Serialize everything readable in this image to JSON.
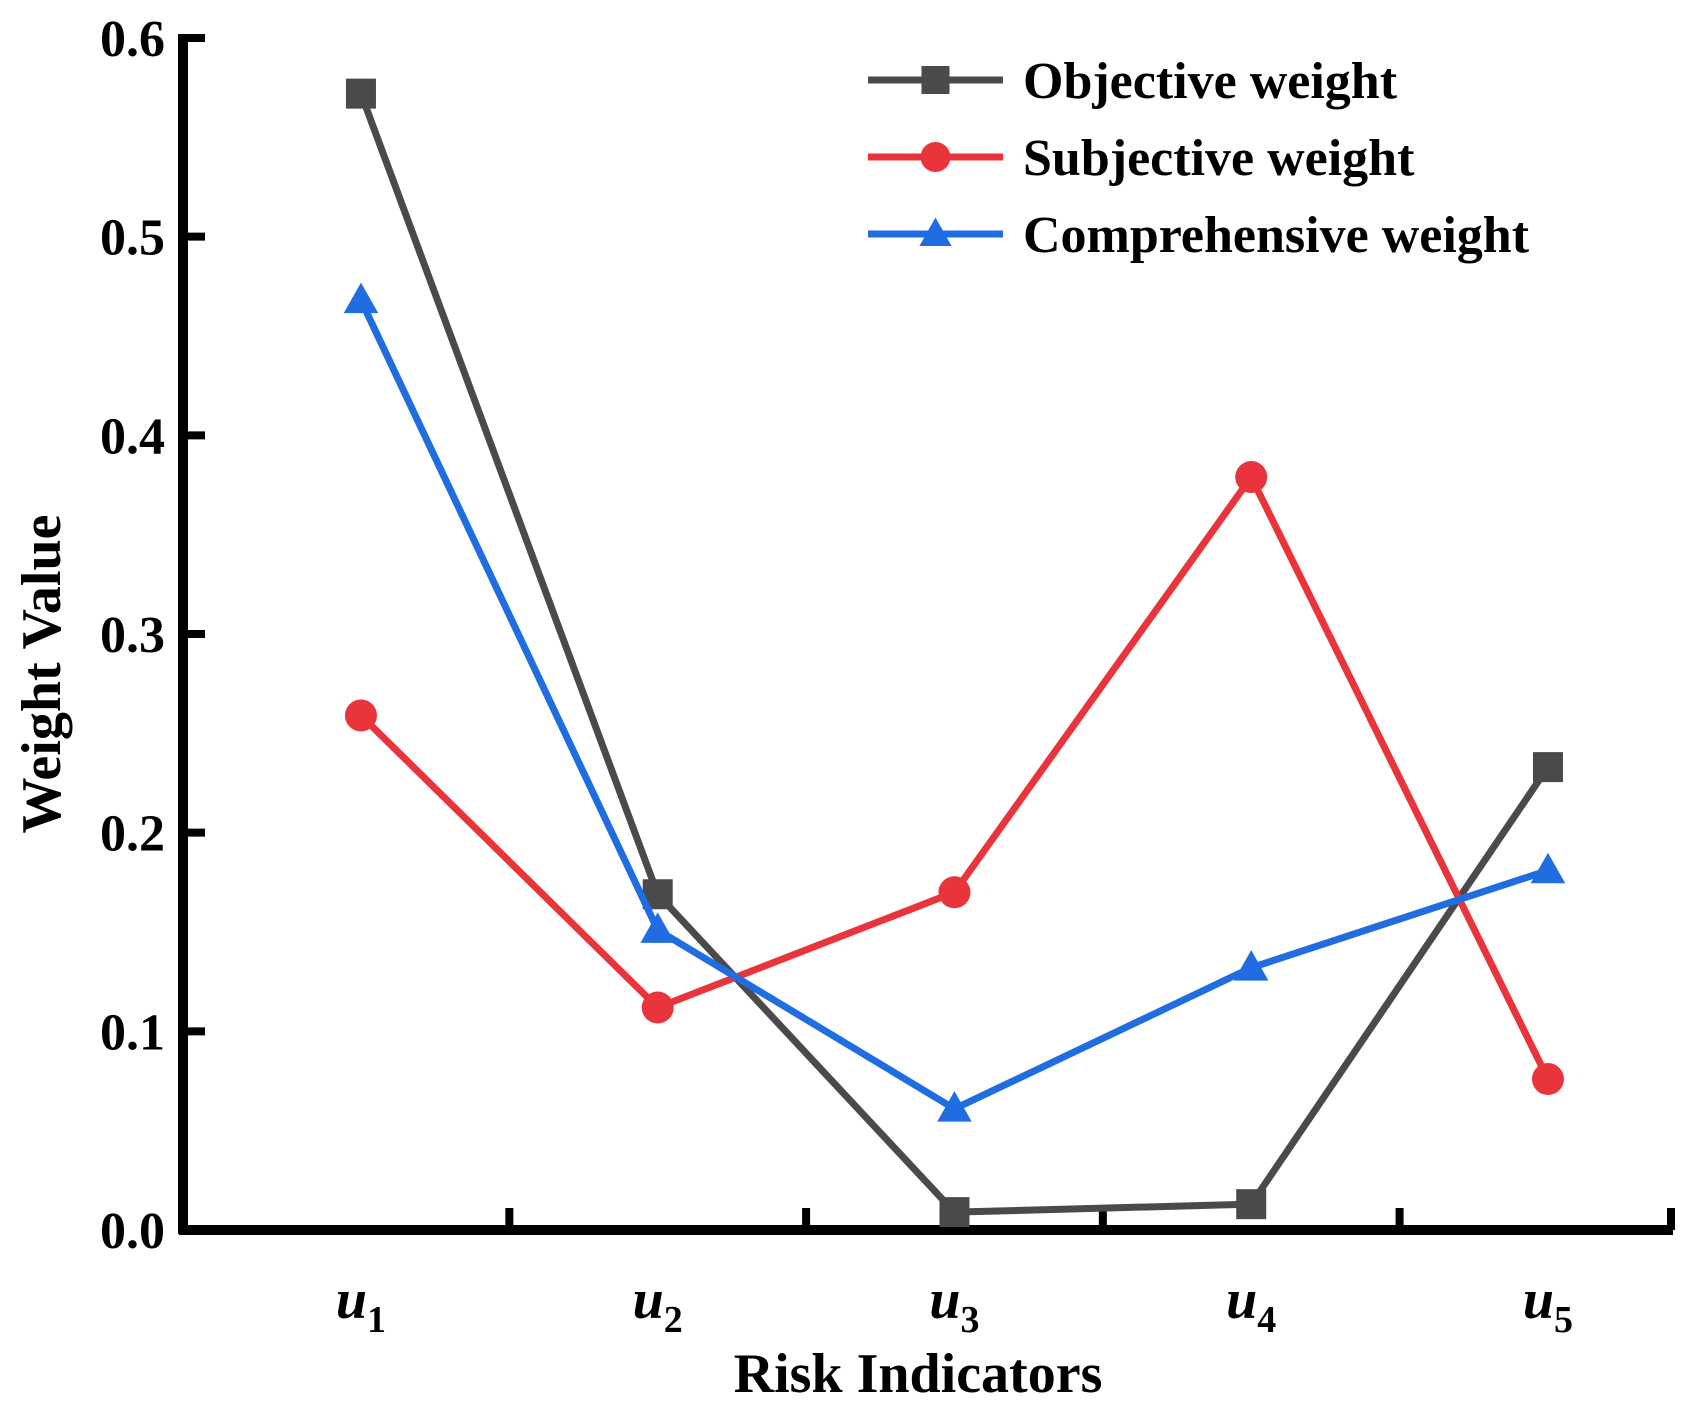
{
  "chart_data": {
    "type": "line",
    "title": "",
    "xlabel": "Risk Indicators",
    "ylabel": "Weight Value",
    "categories": [
      {
        "base": "u",
        "sub": "1"
      },
      {
        "base": "u",
        "sub": "2"
      },
      {
        "base": "u",
        "sub": "3"
      },
      {
        "base": "u",
        "sub": "4"
      },
      {
        "base": "u",
        "sub": "5"
      }
    ],
    "ylim": [
      0,
      0.6
    ],
    "yticks": [
      "0.0",
      "0.1",
      "0.2",
      "0.3",
      "0.4",
      "0.5",
      "0.6"
    ],
    "grid": false,
    "legend_position": "top-right",
    "series": [
      {
        "name": "Objective weight",
        "color": "#4a4a4a",
        "marker": "square",
        "values": [
          0.572,
          0.169,
          0.009,
          0.013,
          0.233
        ]
      },
      {
        "name": "Subjective weight",
        "color": "#e8343a",
        "marker": "circle",
        "values": [
          0.259,
          0.112,
          0.17,
          0.379,
          0.076
        ]
      },
      {
        "name": "Comprehensive weight",
        "color": "#1f6de0",
        "marker": "triangle",
        "values": [
          0.468,
          0.151,
          0.061,
          0.132,
          0.181
        ]
      }
    ]
  }
}
